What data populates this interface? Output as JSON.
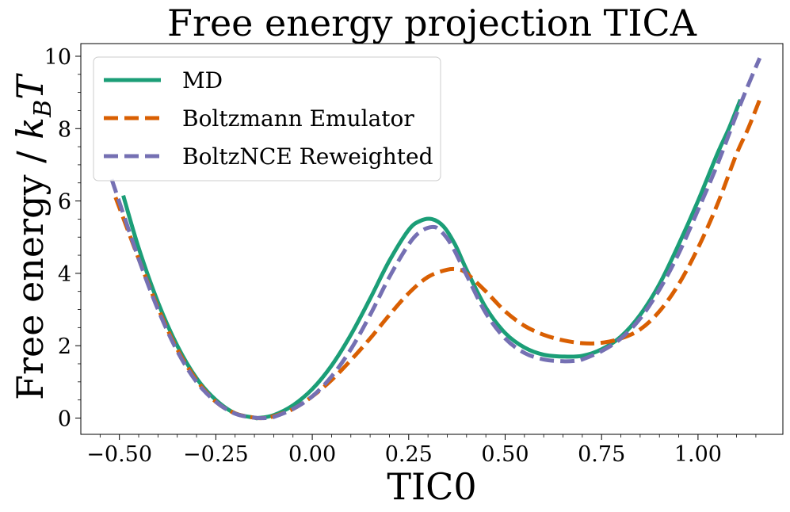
{
  "chart_data": {
    "type": "line",
    "title": "Free energy projection TICA",
    "xlabel": "TIC0",
    "ylabel": "Free energy / k_B T",
    "xlim": [
      -0.6,
      1.22
    ],
    "ylim": [
      -0.45,
      10.35
    ],
    "xticks": [
      -0.5,
      -0.25,
      0.0,
      0.25,
      0.5,
      0.75,
      1.0
    ],
    "xtick_labels": [
      "−0.50",
      "−0.25",
      "0.00",
      "0.25",
      "0.50",
      "0.75",
      "1.00"
    ],
    "yticks": [
      0,
      2,
      4,
      6,
      8,
      10
    ],
    "ytick_labels": [
      "0",
      "2",
      "4",
      "6",
      "8",
      "10"
    ],
    "legend_position": "upper-left",
    "series": [
      {
        "name": "MD",
        "color": "#1b9e77",
        "dash": "solid",
        "x": [
          -0.49,
          -0.45,
          -0.4,
          -0.35,
          -0.3,
          -0.25,
          -0.2,
          -0.15,
          -0.14,
          -0.1,
          -0.05,
          0.0,
          0.05,
          0.1,
          0.15,
          0.2,
          0.25,
          0.28,
          0.31,
          0.34,
          0.37,
          0.4,
          0.45,
          0.5,
          0.55,
          0.6,
          0.65,
          0.7,
          0.75,
          0.8,
          0.85,
          0.9,
          0.95,
          1.0,
          1.05,
          1.08,
          1.11
        ],
        "y": [
          6.15,
          4.7,
          3.2,
          2.0,
          1.1,
          0.5,
          0.13,
          0.01,
          0.0,
          0.08,
          0.35,
          0.8,
          1.45,
          2.3,
          3.3,
          4.35,
          5.2,
          5.45,
          5.5,
          5.3,
          4.8,
          4.1,
          3.05,
          2.35,
          1.95,
          1.75,
          1.7,
          1.72,
          1.9,
          2.25,
          2.85,
          3.7,
          4.8,
          6.0,
          7.3,
          8.0,
          8.8
        ]
      },
      {
        "name": "Boltzmann Emulator",
        "color": "#d95f02",
        "dash": "dashed",
        "x": [
          -0.51,
          -0.45,
          -0.4,
          -0.35,
          -0.3,
          -0.25,
          -0.2,
          -0.15,
          -0.13,
          -0.1,
          -0.05,
          0.0,
          0.05,
          0.1,
          0.15,
          0.2,
          0.25,
          0.3,
          0.35,
          0.38,
          0.4,
          0.45,
          0.5,
          0.55,
          0.6,
          0.65,
          0.7,
          0.75,
          0.8,
          0.85,
          0.9,
          0.95,
          1.0,
          1.05,
          1.1,
          1.13,
          1.16
        ],
        "y": [
          6.1,
          4.4,
          3.05,
          1.9,
          1.05,
          0.45,
          0.13,
          0.01,
          0.0,
          0.05,
          0.25,
          0.6,
          1.05,
          1.6,
          2.2,
          2.85,
          3.45,
          3.9,
          4.1,
          4.1,
          4.0,
          3.5,
          2.95,
          2.55,
          2.3,
          2.15,
          2.07,
          2.08,
          2.2,
          2.45,
          2.95,
          3.7,
          4.7,
          5.9,
          7.3,
          8.0,
          8.8
        ]
      },
      {
        "name": "BoltzNCE Reweighted",
        "color": "#7570b3",
        "dash": "dashed",
        "x": [
          -0.52,
          -0.45,
          -0.4,
          -0.35,
          -0.3,
          -0.25,
          -0.2,
          -0.15,
          -0.12,
          -0.1,
          -0.05,
          0.0,
          0.05,
          0.1,
          0.15,
          0.2,
          0.25,
          0.28,
          0.31,
          0.33,
          0.36,
          0.4,
          0.45,
          0.5,
          0.55,
          0.6,
          0.65,
          0.68,
          0.7,
          0.75,
          0.8,
          0.85,
          0.9,
          0.95,
          1.0,
          1.05,
          1.1,
          1.13,
          1.16
        ],
        "y": [
          6.6,
          4.4,
          3.0,
          1.85,
          1.0,
          0.45,
          0.12,
          0.01,
          0.0,
          0.03,
          0.25,
          0.6,
          1.15,
          1.9,
          2.85,
          3.9,
          4.8,
          5.15,
          5.28,
          5.2,
          4.8,
          3.95,
          2.9,
          2.2,
          1.8,
          1.62,
          1.57,
          1.58,
          1.62,
          1.85,
          2.2,
          2.75,
          3.55,
          4.55,
          5.75,
          7.0,
          8.4,
          9.2,
          9.95
        ]
      }
    ]
  }
}
